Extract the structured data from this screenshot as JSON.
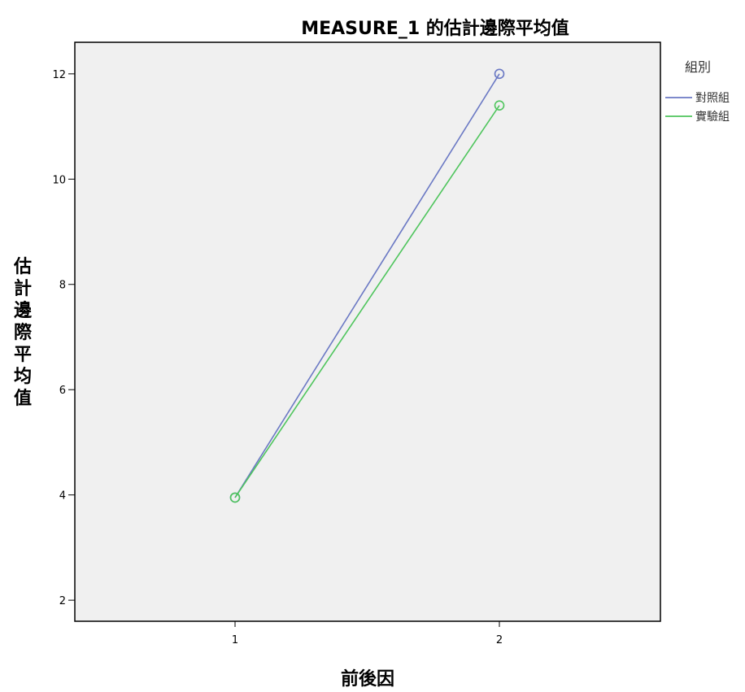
{
  "chart_data": {
    "type": "line",
    "title": "MEASURE_1 的估計邊際平均值",
    "xlabel": "前後因",
    "ylabel": "估計邊際平均值",
    "categories": [
      "1",
      "2"
    ],
    "x_ticks": [
      "1",
      "2"
    ],
    "y_ticks": [
      "2",
      "4",
      "6",
      "8",
      "10",
      "12"
    ],
    "ylim": [
      1.6,
      12.6
    ],
    "legend": {
      "title": "組別",
      "placement": "right"
    },
    "series": [
      {
        "name": "對照組",
        "color": "#6b79c4",
        "values": [
          3.95,
          12.0
        ]
      },
      {
        "name": "實驗組",
        "color": "#4fc55d",
        "values": [
          3.95,
          11.4
        ]
      }
    ],
    "plot_background": "#f0f0f0",
    "grid": false
  }
}
